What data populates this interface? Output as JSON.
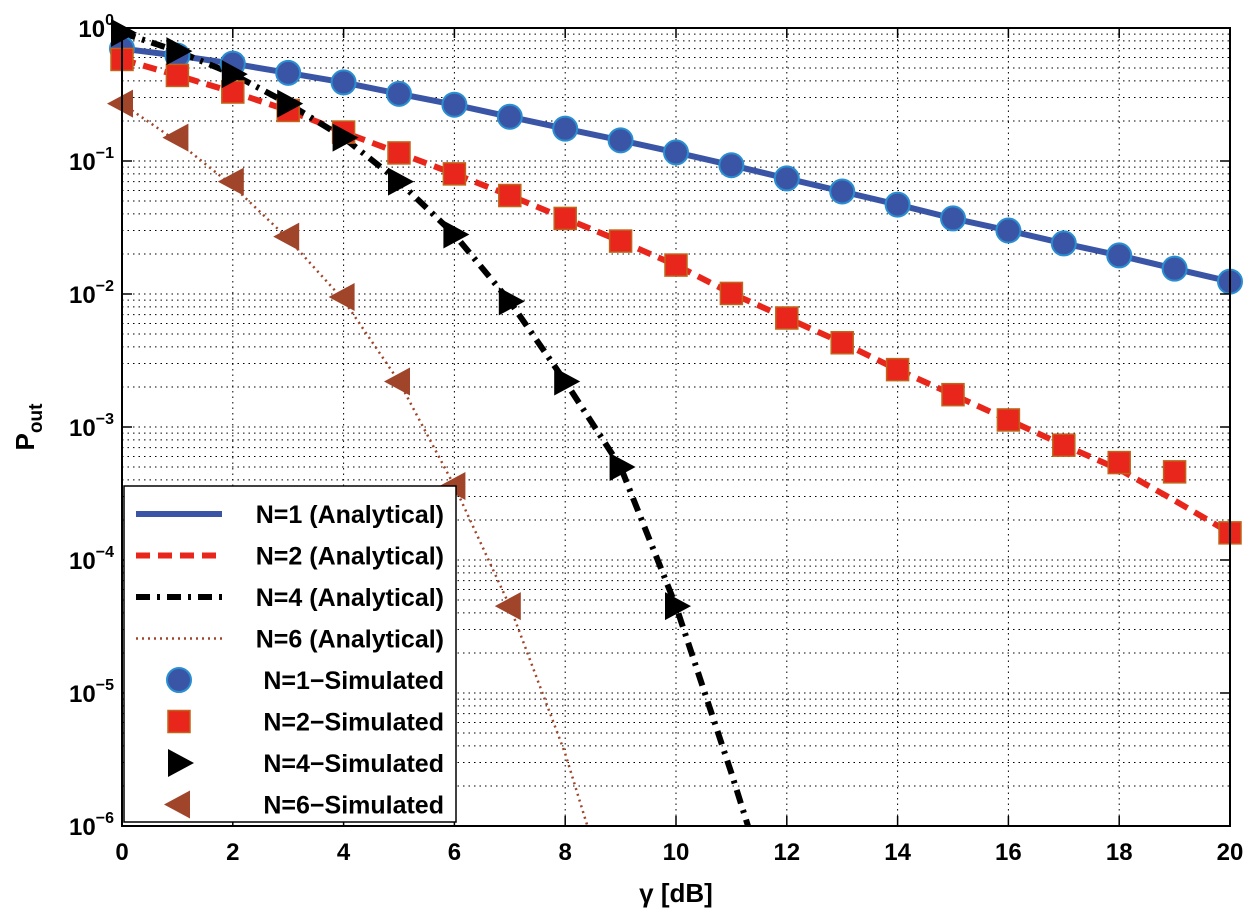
{
  "chart_data": {
    "type": "line",
    "yscale": "log",
    "xlabel": "γ [dB]",
    "ylabel_main": "P",
    "ylabel_sub": "out",
    "xlim": [
      0,
      20
    ],
    "ylim": [
      1e-06,
      1
    ],
    "grid": true,
    "legend_position": "bottom-left",
    "x_ticks": [
      0,
      2,
      4,
      6,
      8,
      10,
      12,
      14,
      16,
      18,
      20
    ],
    "y_ticks": [
      {
        "value": 1,
        "base": "10",
        "exp": "0"
      },
      {
        "value": 0.1,
        "base": "10",
        "exp": "−1"
      },
      {
        "value": 0.01,
        "base": "10",
        "exp": "−2"
      },
      {
        "value": 0.001,
        "base": "10",
        "exp": "−3"
      },
      {
        "value": 0.0001,
        "base": "10",
        "exp": "−4"
      },
      {
        "value": 1e-05,
        "base": "10",
        "exp": "−5"
      },
      {
        "value": 1e-06,
        "base": "10",
        "exp": "−6"
      }
    ],
    "series": [
      {
        "name": "N=1 (Analytical)",
        "kind": "line",
        "style": "solid",
        "color": "#3a55a5",
        "x": [
          0,
          1,
          2,
          3,
          4,
          5,
          6,
          7,
          8,
          9,
          10,
          11,
          12,
          13,
          14,
          15,
          16,
          17,
          18,
          19,
          20
        ],
        "y": [
          0.7,
          0.62,
          0.54,
          0.46,
          0.39,
          0.32,
          0.265,
          0.215,
          0.175,
          0.143,
          0.116,
          0.093,
          0.074,
          0.059,
          0.047,
          0.037,
          0.03,
          0.024,
          0.0195,
          0.0155,
          0.0124
        ]
      },
      {
        "name": "N=2 (Analytical)",
        "kind": "line",
        "style": "dashed",
        "color": "#e8261c",
        "x": [
          0,
          1,
          2,
          3,
          4,
          5,
          6,
          7,
          8,
          9,
          10,
          11,
          12,
          13,
          14,
          15,
          16,
          17,
          18,
          19,
          20
        ],
        "y": [
          0.58,
          0.44,
          0.33,
          0.24,
          0.165,
          0.115,
          0.08,
          0.055,
          0.037,
          0.025,
          0.0165,
          0.0101,
          0.0066,
          0.0043,
          0.0027,
          0.00175,
          0.00113,
          0.00073,
          0.00048,
          0.00028,
          0.00016
        ]
      },
      {
        "name": "N=4 (Analytical)",
        "kind": "line",
        "style": "dashdot",
        "color": "#000000",
        "x": [
          0,
          1,
          2,
          3,
          4,
          5,
          6,
          7,
          8,
          9,
          10,
          11,
          11.3
        ],
        "y": [
          0.92,
          0.67,
          0.45,
          0.27,
          0.15,
          0.07,
          0.028,
          0.0088,
          0.0022,
          0.0005,
          4.5e-05,
          2.5e-06,
          1e-06
        ]
      },
      {
        "name": "N=6 (Analytical)",
        "kind": "line",
        "style": "dotted",
        "color": "#a0442a",
        "x": [
          0,
          1,
          2,
          3,
          4,
          5,
          6,
          7,
          8,
          8.4
        ],
        "y": [
          0.27,
          0.14,
          0.065,
          0.026,
          0.009,
          0.0022,
          0.00036,
          4.5e-05,
          3.5e-06,
          1e-06
        ]
      },
      {
        "name": "N=1-Simulated",
        "kind": "marker",
        "marker": "circle",
        "color": "#3a55a5",
        "x": [
          0,
          1,
          2,
          3,
          4,
          5,
          6,
          7,
          8,
          9,
          10,
          11,
          12,
          13,
          14,
          15,
          16,
          17,
          18,
          19,
          20
        ],
        "y": [
          0.7,
          0.62,
          0.54,
          0.46,
          0.39,
          0.32,
          0.265,
          0.215,
          0.175,
          0.143,
          0.116,
          0.093,
          0.074,
          0.059,
          0.047,
          0.037,
          0.03,
          0.024,
          0.0195,
          0.0155,
          0.0124
        ]
      },
      {
        "name": "N=2-Simulated",
        "kind": "marker",
        "marker": "square",
        "color": "#e8261c",
        "x": [
          0,
          1,
          2,
          3,
          4,
          5,
          6,
          7,
          8,
          9,
          10,
          11,
          12,
          13,
          14,
          15,
          16,
          17,
          18,
          19,
          20
        ],
        "y": [
          0.58,
          0.44,
          0.33,
          0.24,
          0.165,
          0.115,
          0.08,
          0.055,
          0.037,
          0.025,
          0.0165,
          0.0101,
          0.0066,
          0.0043,
          0.0027,
          0.00175,
          0.00113,
          0.00073,
          0.00054,
          0.00046,
          0.00016
        ]
      },
      {
        "name": "N=4-Simulated",
        "kind": "marker",
        "marker": "triangle-right",
        "color": "#000000",
        "x": [
          0,
          1,
          2,
          3,
          4,
          5,
          6,
          7,
          8,
          9,
          10
        ],
        "y": [
          0.92,
          0.67,
          0.45,
          0.27,
          0.15,
          0.07,
          0.028,
          0.0088,
          0.0022,
          0.0005,
          4.5e-05
        ]
      },
      {
        "name": "N=6-Simulated",
        "kind": "marker",
        "marker": "triangle-left",
        "color": "#a0442a",
        "x": [
          0,
          1,
          2,
          3,
          4,
          5,
          6,
          7
        ],
        "y": [
          0.27,
          0.15,
          0.07,
          0.027,
          0.0095,
          0.0022,
          0.00036,
          4.5e-05
        ]
      }
    ]
  }
}
